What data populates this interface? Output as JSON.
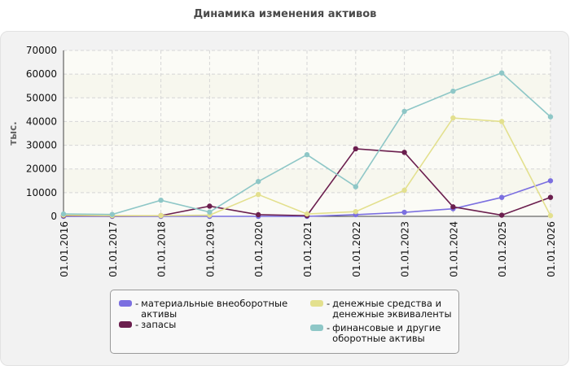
{
  "chart_data": {
    "type": "line",
    "title": "Динамика изменения активов",
    "ylabel": "тыс.",
    "xlabel": "",
    "ylim": [
      0,
      70000
    ],
    "yticks": [
      0,
      10000,
      20000,
      30000,
      40000,
      50000,
      60000,
      70000
    ],
    "grid": true,
    "legend_position": "bottom",
    "categories": [
      "01.01.2016",
      "01.01.2017",
      "01.01.2018",
      "01.01.2019",
      "01.01.2020",
      "01.01.2021",
      "01.01.2022",
      "01.01.2023",
      "01.01.2024",
      "01.01.2025",
      "01.01.2026"
    ],
    "series": [
      {
        "name": "материальные внеоборотные активы",
        "color": "#7b6fe0",
        "values": [
          0,
          0,
          0,
          0,
          0,
          0,
          700,
          1700,
          3200,
          8000,
          15000
        ]
      },
      {
        "name": "запасы",
        "color": "#6b1e4e",
        "values": [
          300,
          200,
          300,
          4300,
          700,
          300,
          28500,
          27000,
          4000,
          500,
          8000
        ]
      },
      {
        "name": "денежные средства и денежные эквиваленты",
        "color": "#e3e08e",
        "values": [
          500,
          300,
          300,
          500,
          9200,
          1000,
          2000,
          11000,
          41500,
          40000,
          300
        ]
      },
      {
        "name": "финансовые и другие оборотные активы",
        "color": "#8ec7c7",
        "values": [
          1000,
          800,
          6800,
          1800,
          14700,
          26000,
          12500,
          44300,
          52800,
          60500,
          42000
        ]
      }
    ]
  },
  "legend": {
    "items": [
      {
        "label_lines": [
          "материальные внеоборотные",
          "активы"
        ],
        "color": "#7b6fe0"
      },
      {
        "label_lines": [
          "запасы"
        ],
        "color": "#6b1e4e"
      },
      {
        "label_lines": [
          "денежные средства и",
          "денежные эквиваленты"
        ],
        "color": "#e3e08e"
      },
      {
        "label_lines": [
          "финансовые и другие",
          "оборотные активы"
        ],
        "color": "#8ec7c7"
      }
    ],
    "dash": "-"
  }
}
